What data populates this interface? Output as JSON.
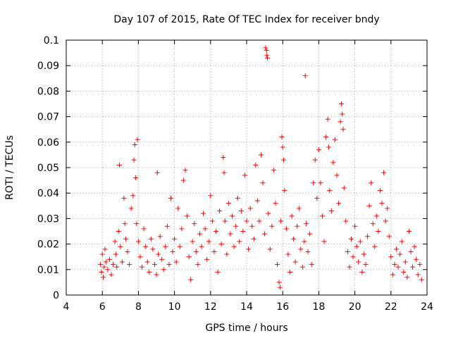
{
  "chart_data": {
    "type": "scatter",
    "title": "Day 107 of 2015, Rate Of TEC Index for receiver bndy",
    "xlabel": "GPS time / hours",
    "ylabel": "ROTI / TECUs",
    "xlim": [
      4,
      24
    ],
    "ylim": [
      0,
      0.1
    ],
    "xticks": [
      "4",
      "6",
      "8",
      "10",
      "12",
      "14",
      "16",
      "18",
      "20",
      "22",
      "24"
    ],
    "yticks": [
      "0",
      "0.01",
      "0.02",
      "0.03",
      "0.04",
      "0.05",
      "0.06",
      "0.07",
      "0.08",
      "0.09",
      "0.1"
    ],
    "grid": true,
    "marker": "+",
    "color": "#ff0000",
    "series": [
      {
        "name": "ROTI",
        "points": [
          [
            5.9,
            0.012
          ],
          [
            5.95,
            0.009
          ],
          [
            6.0,
            0.016
          ],
          [
            6.05,
            0.007
          ],
          [
            6.1,
            0.011
          ],
          [
            6.15,
            0.018
          ],
          [
            6.2,
            0.013
          ],
          [
            6.3,
            0.01
          ],
          [
            6.4,
            0.014
          ],
          [
            6.5,
            0.008
          ],
          [
            6.6,
            0.012
          ],
          [
            6.7,
            0.021
          ],
          [
            6.75,
            0.016
          ],
          [
            6.8,
            0.011
          ],
          [
            6.9,
            0.025
          ],
          [
            6.95,
            0.051
          ],
          [
            7.0,
            0.019
          ],
          [
            7.1,
            0.013
          ],
          [
            7.2,
            0.038
          ],
          [
            7.25,
            0.028
          ],
          [
            7.3,
            0.022
          ],
          [
            7.4,
            0.017
          ],
          [
            7.5,
            0.012
          ],
          [
            7.6,
            0.034
          ],
          [
            7.7,
            0.039
          ],
          [
            7.75,
            0.053
          ],
          [
            7.8,
            0.059
          ],
          [
            7.85,
            0.046
          ],
          [
            7.9,
            0.028
          ],
          [
            7.95,
            0.061
          ],
          [
            8.0,
            0.021
          ],
          [
            8.1,
            0.015
          ],
          [
            8.2,
            0.011
          ],
          [
            8.3,
            0.026
          ],
          [
            8.4,
            0.019
          ],
          [
            8.5,
            0.013
          ],
          [
            8.6,
            0.009
          ],
          [
            8.7,
            0.022
          ],
          [
            8.8,
            0.018
          ],
          [
            8.9,
            0.012
          ],
          [
            9.0,
            0.008
          ],
          [
            9.05,
            0.048
          ],
          [
            9.1,
            0.016
          ],
          [
            9.2,
            0.023
          ],
          [
            9.3,
            0.014
          ],
          [
            9.4,
            0.01
          ],
          [
            9.5,
            0.019
          ],
          [
            9.6,
            0.027
          ],
          [
            9.7,
            0.012
          ],
          [
            9.8,
            0.038
          ],
          [
            9.9,
            0.017
          ],
          [
            10.0,
            0.022
          ],
          [
            10.1,
            0.013
          ],
          [
            10.2,
            0.034
          ],
          [
            10.3,
            0.019
          ],
          [
            10.4,
            0.026
          ],
          [
            10.5,
            0.045
          ],
          [
            10.6,
            0.049
          ],
          [
            10.7,
            0.031
          ],
          [
            10.8,
            0.015
          ],
          [
            10.9,
            0.006
          ],
          [
            11.0,
            0.021
          ],
          [
            11.1,
            0.028
          ],
          [
            11.2,
            0.017
          ],
          [
            11.3,
            0.012
          ],
          [
            11.4,
            0.024
          ],
          [
            11.5,
            0.019
          ],
          [
            11.6,
            0.032
          ],
          [
            11.7,
            0.026
          ],
          [
            11.8,
            0.014
          ],
          [
            11.9,
            0.021
          ],
          [
            12.0,
            0.039
          ],
          [
            12.1,
            0.029
          ],
          [
            12.2,
            0.017
          ],
          [
            12.3,
            0.025
          ],
          [
            12.4,
            0.009
          ],
          [
            12.5,
            0.033
          ],
          [
            12.6,
            0.02
          ],
          [
            12.7,
            0.054
          ],
          [
            12.75,
            0.048
          ],
          [
            12.8,
            0.029
          ],
          [
            12.9,
            0.016
          ],
          [
            13.0,
            0.036
          ],
          [
            13.1,
            0.024
          ],
          [
            13.2,
            0.031
          ],
          [
            13.3,
            0.019
          ],
          [
            13.4,
            0.027
          ],
          [
            13.5,
            0.038
          ],
          [
            13.6,
            0.021
          ],
          [
            13.7,
            0.033
          ],
          [
            13.8,
            0.025
          ],
          [
            13.9,
            0.047
          ],
          [
            14.0,
            0.029
          ],
          [
            14.1,
            0.018
          ],
          [
            14.2,
            0.034
          ],
          [
            14.3,
            0.027
          ],
          [
            14.4,
            0.022
          ],
          [
            14.5,
            0.051
          ],
          [
            14.6,
            0.037
          ],
          [
            14.7,
            0.029
          ],
          [
            14.8,
            0.055
          ],
          [
            14.9,
            0.044
          ],
          [
            15.0,
            0.024
          ],
          [
            15.05,
            0.097
          ],
          [
            15.1,
            0.096
          ],
          [
            15.12,
            0.094
          ],
          [
            15.15,
            0.093
          ],
          [
            15.2,
            0.032
          ],
          [
            15.3,
            0.018
          ],
          [
            15.4,
            0.027
          ],
          [
            15.5,
            0.049
          ],
          [
            15.6,
            0.036
          ],
          [
            15.7,
            0.012
          ],
          [
            15.8,
            0.005
          ],
          [
            15.85,
            0.003
          ],
          [
            15.9,
            0.029
          ],
          [
            15.95,
            0.062
          ],
          [
            16.0,
            0.058
          ],
          [
            16.05,
            0.053
          ],
          [
            16.1,
            0.041
          ],
          [
            16.2,
            0.026
          ],
          [
            16.3,
            0.016
          ],
          [
            16.4,
            0.009
          ],
          [
            16.5,
            0.031
          ],
          [
            16.6,
            0.022
          ],
          [
            16.7,
            0.013
          ],
          [
            16.8,
            0.027
          ],
          [
            16.9,
            0.034
          ],
          [
            17.0,
            0.018
          ],
          [
            17.1,
            0.011
          ],
          [
            17.2,
            0.021
          ],
          [
            17.25,
            0.086
          ],
          [
            17.3,
            0.028
          ],
          [
            17.4,
            0.017
          ],
          [
            17.5,
            0.024
          ],
          [
            17.6,
            0.012
          ],
          [
            17.7,
            0.044
          ],
          [
            17.8,
            0.053
          ],
          [
            17.9,
            0.038
          ],
          [
            18.0,
            0.057
          ],
          [
            18.1,
            0.044
          ],
          [
            18.2,
            0.031
          ],
          [
            18.3,
            0.021
          ],
          [
            18.4,
            0.062
          ],
          [
            18.5,
            0.069
          ],
          [
            18.55,
            0.058
          ],
          [
            18.6,
            0.041
          ],
          [
            18.7,
            0.033
          ],
          [
            18.8,
            0.052
          ],
          [
            18.9,
            0.061
          ],
          [
            19.0,
            0.047
          ],
          [
            19.1,
            0.036
          ],
          [
            19.2,
            0.068
          ],
          [
            19.25,
            0.075
          ],
          [
            19.3,
            0.071
          ],
          [
            19.35,
            0.065
          ],
          [
            19.4,
            0.042
          ],
          [
            19.5,
            0.029
          ],
          [
            19.6,
            0.017
          ],
          [
            19.7,
            0.011
          ],
          [
            19.8,
            0.022
          ],
          [
            19.9,
            0.015
          ],
          [
            20.0,
            0.027
          ],
          [
            20.1,
            0.019
          ],
          [
            20.2,
            0.013
          ],
          [
            20.3,
            0.021
          ],
          [
            20.4,
            0.009
          ],
          [
            20.5,
            0.016
          ],
          [
            20.6,
            0.012
          ],
          [
            20.7,
            0.023
          ],
          [
            20.8,
            0.035
          ],
          [
            20.9,
            0.044
          ],
          [
            21.0,
            0.028
          ],
          [
            21.1,
            0.019
          ],
          [
            21.2,
            0.031
          ],
          [
            21.3,
            0.025
          ],
          [
            21.4,
            0.041
          ],
          [
            21.5,
            0.036
          ],
          [
            21.6,
            0.048
          ],
          [
            21.7,
            0.029
          ],
          [
            21.8,
            0.034
          ],
          [
            21.9,
            0.023
          ],
          [
            22.0,
            0.015
          ],
          [
            22.1,
            0.008
          ],
          [
            22.2,
            0.012
          ],
          [
            22.3,
            0.018
          ],
          [
            22.4,
            0.011
          ],
          [
            22.5,
            0.016
          ],
          [
            22.6,
            0.021
          ],
          [
            22.7,
            0.009
          ],
          [
            22.8,
            0.013
          ],
          [
            22.9,
            0.007
          ],
          [
            23.0,
            0.025
          ],
          [
            23.1,
            0.017
          ],
          [
            23.2,
            0.011
          ],
          [
            23.3,
            0.019
          ],
          [
            23.4,
            0.014
          ],
          [
            23.5,
            0.008
          ],
          [
            23.6,
            0.012
          ],
          [
            23.7,
            0.006
          ]
        ]
      }
    ]
  }
}
